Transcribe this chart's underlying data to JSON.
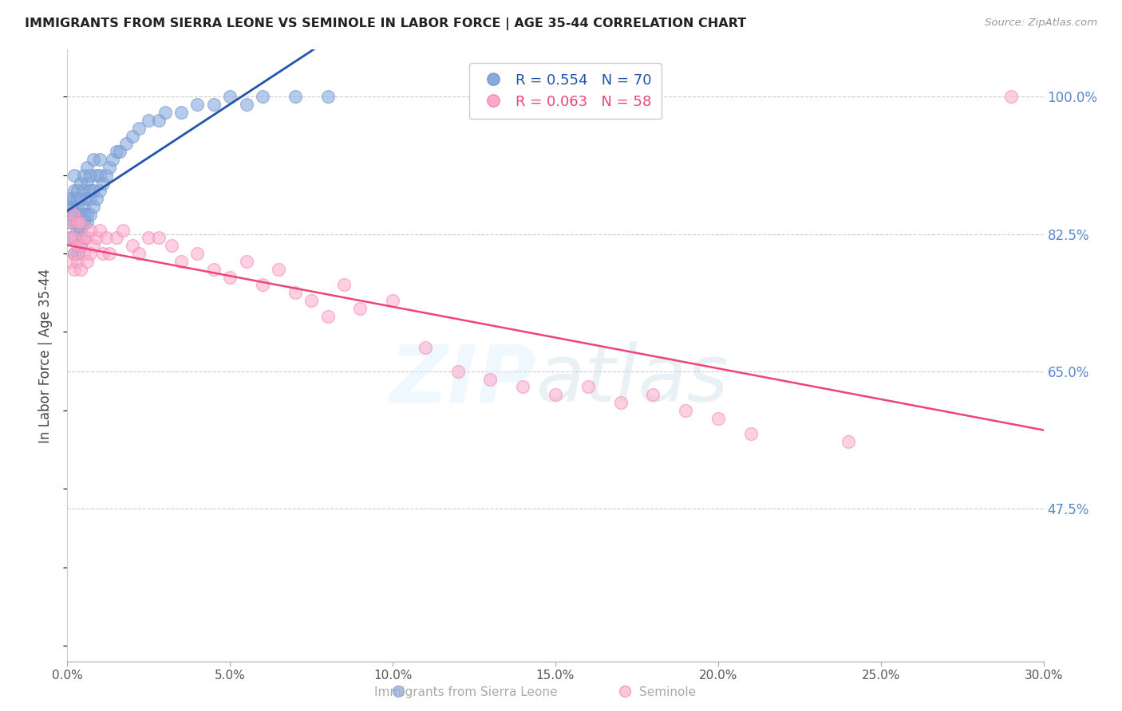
{
  "title": "IMMIGRANTS FROM SIERRA LEONE VS SEMINOLE IN LABOR FORCE | AGE 35-44 CORRELATION CHART",
  "source": "Source: ZipAtlas.com",
  "ylabel": "In Labor Force | Age 35-44",
  "xlim": [
    0.0,
    0.3
  ],
  "ylim": [
    0.28,
    1.06
  ],
  "xticks": [
    0.0,
    0.05,
    0.1,
    0.15,
    0.2,
    0.25,
    0.3
  ],
  "xticklabels": [
    "0.0%",
    "5.0%",
    "10.0%",
    "15.0%",
    "20.0%",
    "25.0%",
    "30.0%"
  ],
  "ytick_right_values": [
    0.475,
    0.65,
    0.825,
    1.0
  ],
  "ytick_right_labels": [
    "47.5%",
    "65.0%",
    "82.5%",
    "100.0%"
  ],
  "grid_color": "#cccccc",
  "background_color": "#ffffff",
  "blue_color": "#88aadd",
  "blue_edge_color": "#7799cc",
  "blue_line_color": "#2255aa",
  "pink_color": "#ffaacc",
  "pink_edge_color": "#ee88aa",
  "pink_line_color": "#ee4477",
  "right_label_color": "#5588cc",
  "legend_blue_R": "R = 0.554",
  "legend_blue_N": "N = 70",
  "legend_pink_R": "R = 0.063",
  "legend_pink_N": "N = 58",
  "blue_scatter_x": [
    0.001,
    0.001,
    0.001,
    0.001,
    0.001,
    0.002,
    0.002,
    0.002,
    0.002,
    0.002,
    0.002,
    0.002,
    0.002,
    0.003,
    0.003,
    0.003,
    0.003,
    0.003,
    0.003,
    0.003,
    0.003,
    0.004,
    0.004,
    0.004,
    0.004,
    0.004,
    0.004,
    0.005,
    0.005,
    0.005,
    0.005,
    0.005,
    0.005,
    0.006,
    0.006,
    0.006,
    0.006,
    0.006,
    0.007,
    0.007,
    0.007,
    0.007,
    0.008,
    0.008,
    0.008,
    0.009,
    0.009,
    0.01,
    0.01,
    0.01,
    0.011,
    0.012,
    0.013,
    0.014,
    0.015,
    0.016,
    0.018,
    0.02,
    0.022,
    0.025,
    0.028,
    0.03,
    0.035,
    0.04,
    0.045,
    0.05,
    0.055,
    0.06,
    0.07,
    0.08
  ],
  "blue_scatter_y": [
    0.82,
    0.84,
    0.85,
    0.86,
    0.87,
    0.8,
    0.82,
    0.84,
    0.85,
    0.86,
    0.87,
    0.88,
    0.9,
    0.8,
    0.82,
    0.83,
    0.84,
    0.85,
    0.86,
    0.87,
    0.88,
    0.81,
    0.83,
    0.84,
    0.85,
    0.87,
    0.89,
    0.82,
    0.84,
    0.85,
    0.86,
    0.88,
    0.9,
    0.84,
    0.85,
    0.87,
    0.89,
    0.91,
    0.85,
    0.87,
    0.88,
    0.9,
    0.86,
    0.88,
    0.92,
    0.87,
    0.9,
    0.88,
    0.9,
    0.92,
    0.89,
    0.9,
    0.91,
    0.92,
    0.93,
    0.93,
    0.94,
    0.95,
    0.96,
    0.97,
    0.97,
    0.98,
    0.98,
    0.99,
    0.99,
    1.0,
    0.99,
    1.0,
    1.0,
    1.0
  ],
  "pink_scatter_x": [
    0.001,
    0.001,
    0.001,
    0.002,
    0.002,
    0.002,
    0.002,
    0.003,
    0.003,
    0.003,
    0.004,
    0.004,
    0.004,
    0.005,
    0.005,
    0.006,
    0.006,
    0.007,
    0.007,
    0.008,
    0.009,
    0.01,
    0.011,
    0.012,
    0.013,
    0.015,
    0.017,
    0.02,
    0.022,
    0.025,
    0.028,
    0.032,
    0.035,
    0.04,
    0.045,
    0.05,
    0.055,
    0.06,
    0.065,
    0.07,
    0.075,
    0.08,
    0.085,
    0.09,
    0.1,
    0.11,
    0.12,
    0.13,
    0.14,
    0.15,
    0.16,
    0.17,
    0.18,
    0.19,
    0.2,
    0.21,
    0.24,
    0.29
  ],
  "pink_scatter_y": [
    0.79,
    0.82,
    0.84,
    0.78,
    0.8,
    0.82,
    0.85,
    0.79,
    0.81,
    0.84,
    0.78,
    0.81,
    0.84,
    0.8,
    0.82,
    0.79,
    0.82,
    0.8,
    0.83,
    0.81,
    0.82,
    0.83,
    0.8,
    0.82,
    0.8,
    0.82,
    0.83,
    0.81,
    0.8,
    0.82,
    0.82,
    0.81,
    0.79,
    0.8,
    0.78,
    0.77,
    0.79,
    0.76,
    0.78,
    0.75,
    0.74,
    0.72,
    0.76,
    0.73,
    0.74,
    0.68,
    0.65,
    0.64,
    0.63,
    0.62,
    0.63,
    0.61,
    0.62,
    0.6,
    0.59,
    0.57,
    0.56,
    1.0
  ]
}
